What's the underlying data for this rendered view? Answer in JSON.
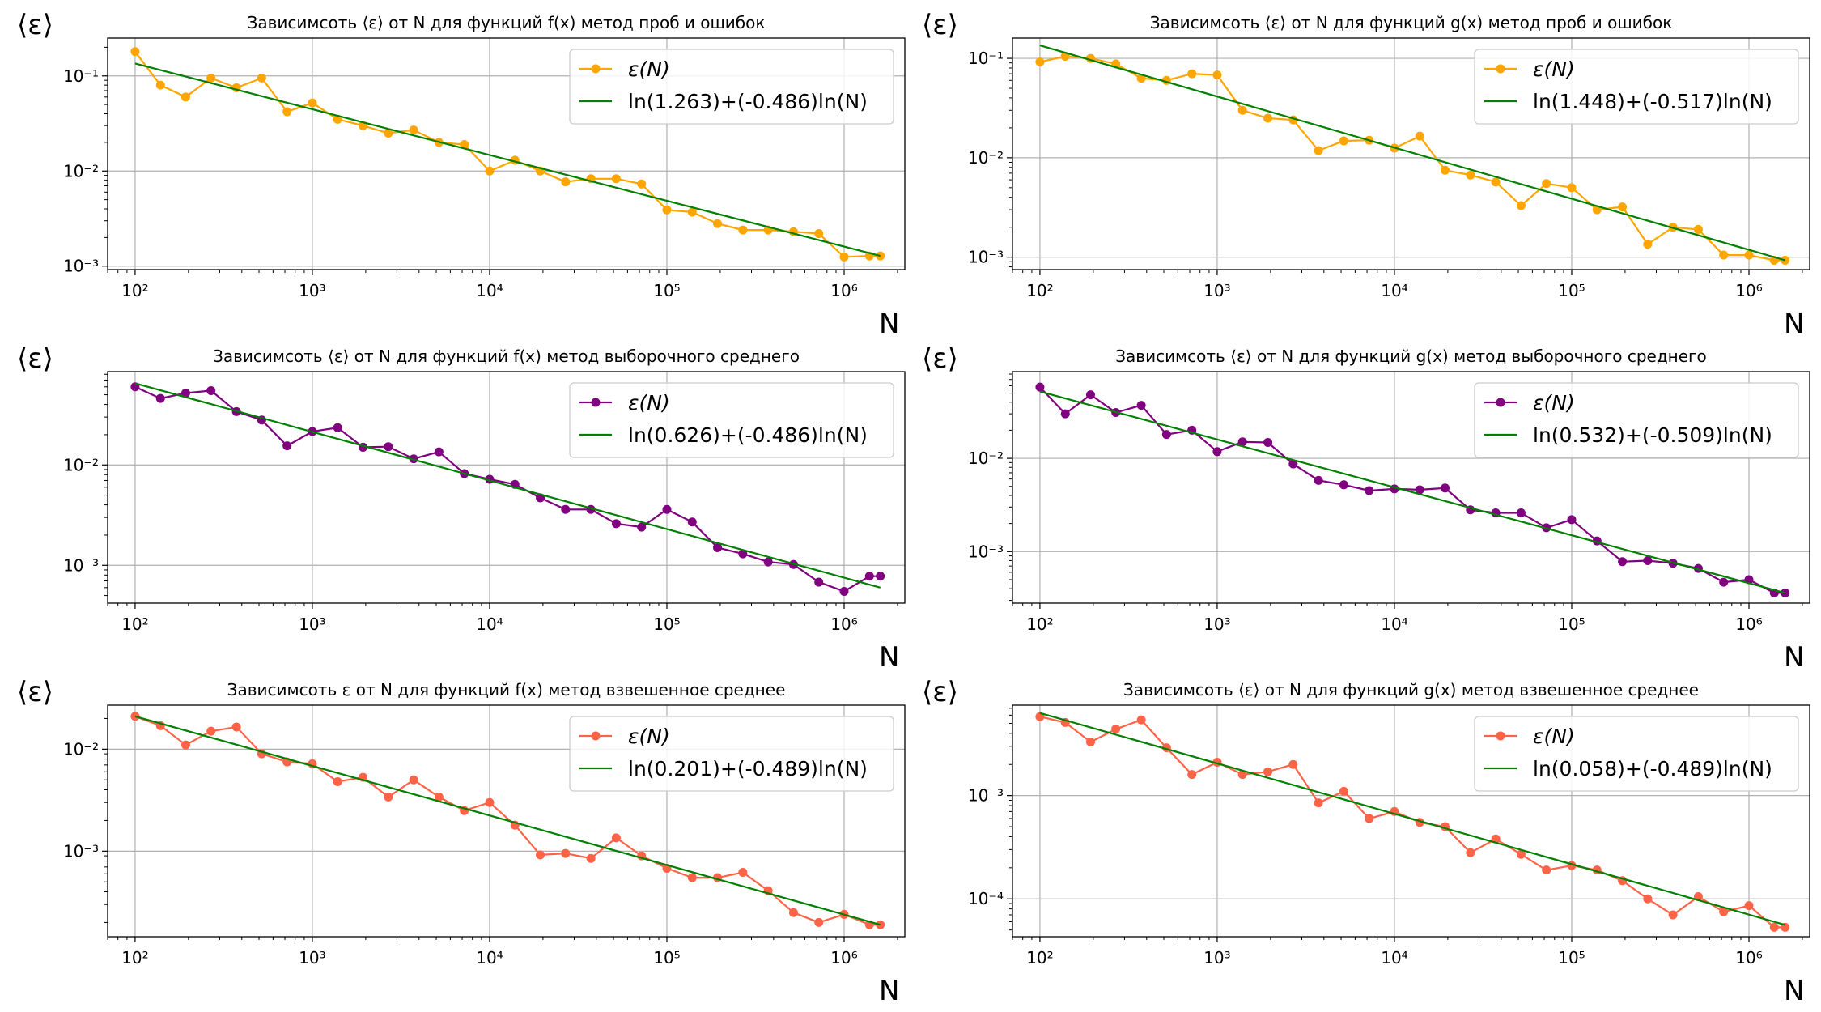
{
  "figure": {
    "ylabel": "⟨ε⟩",
    "xlabel": "N"
  },
  "chart_data": [
    {
      "type": "line",
      "title": "Зависимсоть ⟨ε⟩ от N для функций f(x) метод проб и ошибок",
      "xlabel": "N",
      "ylabel": "⟨ε⟩",
      "xscale": "log",
      "yscale": "log",
      "xlim": [
        70,
        2200000
      ],
      "ylim": [
        0.00092,
        0.25
      ],
      "xticks": [
        100,
        1000,
        10000,
        100000,
        1000000
      ],
      "xtick_labels": [
        "10²",
        "10³",
        "10⁴",
        "10⁵",
        "10⁶"
      ],
      "yticks": [
        0.001,
        0.01,
        0.1
      ],
      "ytick_labels": [
        "10⁻³",
        "10⁻²",
        "10⁻¹"
      ],
      "grid": true,
      "legend_position": "top-right",
      "series": [
        {
          "name": "ε(N)",
          "kind": "markers-line",
          "color": "#ffa500",
          "x": [
            100,
            139,
            193,
            268,
            373,
            518,
            720,
            1000,
            1389,
            1931,
            2683,
            3728,
            5179,
            7197,
            10000,
            13895,
            19307,
            26827,
            37276,
            51795,
            71969,
            100000,
            138950,
            193070,
            268270,
            372760,
            517950,
            719690,
            1000000,
            1389500,
            1600000
          ],
          "y": [
            0.18,
            0.08,
            0.06,
            0.095,
            0.075,
            0.095,
            0.042,
            0.052,
            0.035,
            0.03,
            0.025,
            0.027,
            0.02,
            0.019,
            0.01,
            0.013,
            0.01,
            0.0077,
            0.0083,
            0.0083,
            0.0073,
            0.0039,
            0.0037,
            0.0028,
            0.0024,
            0.0024,
            0.0023,
            0.0022,
            0.00125,
            0.00128,
            0.00128
          ]
        },
        {
          "name": "ln(1.263)+(-0.486)ln(N)",
          "kind": "line",
          "color": "#008000",
          "x": [
            100,
            1600000
          ],
          "y": [
            0.135,
            0.00128
          ]
        }
      ]
    },
    {
      "type": "line",
      "title": "Зависимсоть ⟨ε⟩ от N для функций g(x) метод проб и ошибок",
      "xlabel": "N",
      "ylabel": "⟨ε⟩",
      "xscale": "log",
      "yscale": "log",
      "xlim": [
        70,
        2200000
      ],
      "ylim": [
        0.00075,
        0.16
      ],
      "xticks": [
        100,
        1000,
        10000,
        100000,
        1000000
      ],
      "xtick_labels": [
        "10²",
        "10³",
        "10⁴",
        "10⁵",
        "10⁶"
      ],
      "yticks": [
        0.001,
        0.01,
        0.1
      ],
      "ytick_labels": [
        "10⁻³",
        "10⁻²",
        "10⁻¹"
      ],
      "grid": true,
      "legend_position": "top-right",
      "series": [
        {
          "name": "ε(N)",
          "kind": "markers-line",
          "color": "#ffa500",
          "x": [
            100,
            139,
            193,
            268,
            373,
            518,
            720,
            1000,
            1389,
            1931,
            2683,
            3728,
            5179,
            7197,
            10000,
            13895,
            19307,
            26827,
            37276,
            51795,
            71969,
            100000,
            138950,
            193070,
            268270,
            372760,
            517950,
            719690,
            1000000,
            1389500,
            1600000
          ],
          "y": [
            0.092,
            0.105,
            0.1,
            0.088,
            0.063,
            0.06,
            0.07,
            0.068,
            0.03,
            0.025,
            0.024,
            0.0118,
            0.0148,
            0.015,
            0.0125,
            0.0165,
            0.0075,
            0.0067,
            0.0057,
            0.0033,
            0.0055,
            0.005,
            0.003,
            0.0032,
            0.00135,
            0.002,
            0.0019,
            0.00105,
            0.00105,
            0.00093,
            0.00093
          ]
        },
        {
          "name": "ln(1.448)+(-0.517)ln(N)",
          "kind": "line",
          "color": "#008000",
          "x": [
            100,
            1600000
          ],
          "y": [
            0.135,
            0.00093
          ]
        }
      ]
    },
    {
      "type": "line",
      "title": "Зависимсоть ⟨ε⟩ от N для функций f(x) метод выборочного среднего",
      "xlabel": "N",
      "ylabel": "⟨ε⟩",
      "xscale": "log",
      "yscale": "log",
      "xlim": [
        70,
        2200000
      ],
      "ylim": [
        0.00042,
        0.085
      ],
      "xticks": [
        100,
        1000,
        10000,
        100000,
        1000000
      ],
      "xtick_labels": [
        "10²",
        "10³",
        "10⁴",
        "10⁵",
        "10⁶"
      ],
      "yticks": [
        0.001,
        0.01
      ],
      "ytick_labels": [
        "10⁻³",
        "10⁻²"
      ],
      "grid": true,
      "legend_position": "top-right",
      "series": [
        {
          "name": "ε(N)",
          "kind": "markers-line",
          "color": "#800080",
          "x": [
            100,
            139,
            193,
            268,
            373,
            518,
            720,
            1000,
            1389,
            1931,
            2683,
            3728,
            5179,
            7197,
            10000,
            13895,
            19307,
            26827,
            37276,
            51795,
            71969,
            100000,
            138950,
            193070,
            268270,
            372760,
            517950,
            719690,
            1000000,
            1389500,
            1600000
          ],
          "y": [
            0.06,
            0.046,
            0.052,
            0.055,
            0.034,
            0.028,
            0.0155,
            0.0215,
            0.0235,
            0.015,
            0.0152,
            0.0115,
            0.0135,
            0.0082,
            0.0072,
            0.0064,
            0.0047,
            0.0036,
            0.0036,
            0.0026,
            0.0024,
            0.0036,
            0.0027,
            0.0015,
            0.0013,
            0.00108,
            0.00102,
            0.00068,
            0.00055,
            0.00078,
            0.00078
          ]
        },
        {
          "name": "ln(0.626)+(-0.486)ln(N)",
          "kind": "line",
          "color": "#008000",
          "x": [
            100,
            1600000
          ],
          "y": [
            0.065,
            0.0006
          ]
        }
      ]
    },
    {
      "type": "line",
      "title": "Зависимсоть ⟨ε⟩ от N для функций g(x) метод выборочного среднего",
      "xlabel": "N",
      "ylabel": "⟨ε⟩",
      "xscale": "log",
      "yscale": "log",
      "xlim": [
        70,
        2200000
      ],
      "ylim": [
        0.00028,
        0.085
      ],
      "xticks": [
        100,
        1000,
        10000,
        100000,
        1000000
      ],
      "xtick_labels": [
        "10²",
        "10³",
        "10⁴",
        "10⁵",
        "10⁶"
      ],
      "yticks": [
        0.001,
        0.01
      ],
      "ytick_labels": [
        "10⁻³",
        "10⁻²"
      ],
      "grid": true,
      "legend_position": "top-right",
      "series": [
        {
          "name": "ε(N)",
          "kind": "markers-line",
          "color": "#800080",
          "x": [
            100,
            139,
            193,
            268,
            373,
            518,
            720,
            1000,
            1389,
            1931,
            2683,
            3728,
            5179,
            7197,
            10000,
            13895,
            19307,
            26827,
            37276,
            51795,
            71969,
            100000,
            138950,
            193070,
            268270,
            372760,
            517950,
            719690,
            1000000,
            1389500,
            1600000
          ],
          "y": [
            0.058,
            0.03,
            0.048,
            0.031,
            0.037,
            0.018,
            0.02,
            0.0118,
            0.015,
            0.0148,
            0.0087,
            0.0058,
            0.0052,
            0.0045,
            0.0047,
            0.0046,
            0.0048,
            0.0028,
            0.0026,
            0.0026,
            0.0018,
            0.0022,
            0.0013,
            0.00078,
            0.0008,
            0.00075,
            0.00066,
            0.00047,
            0.0005,
            0.00036,
            0.00036
          ]
        },
        {
          "name": "ln(0.532)+(-0.509)ln(N)",
          "kind": "line",
          "color": "#008000",
          "x": [
            100,
            1600000
          ],
          "y": [
            0.052,
            0.00036
          ]
        }
      ]
    },
    {
      "type": "line",
      "title": "Зависимсоть ε от N для функций f(x) метод взвешенное среднее",
      "xlabel": "N",
      "ylabel": "⟨ε⟩",
      "xscale": "log",
      "yscale": "log",
      "xlim": [
        70,
        2200000
      ],
      "ylim": [
        0.000145,
        0.027
      ],
      "xticks": [
        100,
        1000,
        10000,
        100000,
        1000000
      ],
      "xtick_labels": [
        "10²",
        "10³",
        "10⁴",
        "10⁵",
        "10⁶"
      ],
      "yticks": [
        0.001,
        0.01
      ],
      "ytick_labels": [
        "10⁻³",
        "10⁻²"
      ],
      "grid": true,
      "legend_position": "top-right",
      "series": [
        {
          "name": "ε(N)",
          "kind": "markers-line",
          "color": "#ff6347",
          "x": [
            100,
            139,
            193,
            268,
            373,
            518,
            720,
            1000,
            1389,
            1931,
            2683,
            3728,
            5179,
            7197,
            10000,
            13895,
            19307,
            26827,
            37276,
            51795,
            71969,
            100000,
            138950,
            193070,
            268270,
            372760,
            517950,
            719690,
            1000000,
            1389500,
            1600000
          ],
          "y": [
            0.021,
            0.017,
            0.011,
            0.015,
            0.0165,
            0.009,
            0.0075,
            0.0072,
            0.0048,
            0.0053,
            0.0034,
            0.005,
            0.0034,
            0.0025,
            0.003,
            0.0018,
            0.00092,
            0.00095,
            0.00085,
            0.00135,
            0.0009,
            0.00068,
            0.00055,
            0.00055,
            0.00062,
            0.00041,
            0.00025,
            0.0002,
            0.00024,
            0.00019,
            0.00019
          ]
        },
        {
          "name": "ln(0.201)+(-0.489)ln(N)",
          "kind": "line",
          "color": "#008000",
          "x": [
            100,
            1600000
          ],
          "y": [
            0.021,
            0.00019
          ]
        }
      ]
    },
    {
      "type": "line",
      "title": "Зависимсоть ⟨ε⟩ от N для функций g(x) метод взвешенное среднее",
      "xlabel": "N",
      "ylabel": "⟨ε⟩",
      "xscale": "log",
      "yscale": "log",
      "xlim": [
        70,
        2200000
      ],
      "ylim": [
        4.3e-05,
        0.0075
      ],
      "xticks": [
        100,
        1000,
        10000,
        100000,
        1000000
      ],
      "xtick_labels": [
        "10²",
        "10³",
        "10⁴",
        "10⁵",
        "10⁶"
      ],
      "yticks": [
        0.0001,
        0.001
      ],
      "ytick_labels": [
        "10⁻⁴",
        "10⁻³"
      ],
      "grid": true,
      "legend_position": "top-right",
      "series": [
        {
          "name": "ε(N)",
          "kind": "markers-line",
          "color": "#ff6347",
          "x": [
            100,
            139,
            193,
            268,
            373,
            518,
            720,
            1000,
            1389,
            1931,
            2683,
            3728,
            5179,
            7197,
            10000,
            13895,
            19307,
            26827,
            37276,
            51795,
            71969,
            100000,
            138950,
            193070,
            268270,
            372760,
            517950,
            719690,
            1000000,
            1389500,
            1600000
          ],
          "y": [
            0.0058,
            0.0051,
            0.0033,
            0.0044,
            0.0054,
            0.0029,
            0.0016,
            0.0021,
            0.0016,
            0.0017,
            0.002,
            0.00085,
            0.0011,
            0.0006,
            0.0007,
            0.00055,
            0.0005,
            0.00028,
            0.00038,
            0.00027,
            0.00019,
            0.00021,
            0.00019,
            0.00015,
            0.0001,
            7e-05,
            0.000105,
            7.5e-05,
            8.6e-05,
            5.3e-05,
            5.3e-05
          ]
        },
        {
          "name": "ln(0.058)+(-0.489)ln(N)",
          "kind": "line",
          "color": "#008000",
          "x": [
            100,
            1600000
          ],
          "y": [
            0.0063,
            5.6e-05
          ]
        }
      ]
    }
  ]
}
